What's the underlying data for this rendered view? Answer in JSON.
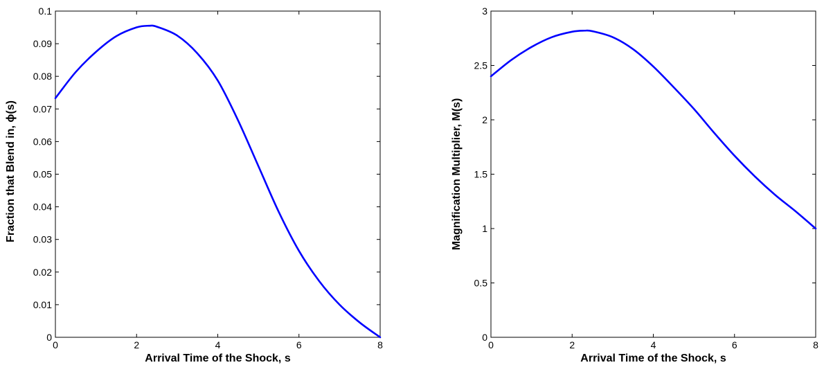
{
  "chart_data": [
    {
      "type": "line",
      "xlabel": "Arrival Time of the Shock, s",
      "ylabel": "Fraction that Blend in,    ϕ(s)",
      "xlim": [
        0,
        8
      ],
      "ylim": [
        0,
        0.1
      ],
      "xticks": [
        0,
        2,
        4,
        6,
        8
      ],
      "yticks": [
        0,
        0.01,
        0.02,
        0.03,
        0.04,
        0.05,
        0.06,
        0.07,
        0.08,
        0.09,
        0.1
      ],
      "xtick_labels": [
        "0",
        "2",
        "4",
        "6",
        "8"
      ],
      "ytick_labels": [
        "0",
        "0.01",
        "0.02",
        "0.03",
        "0.04",
        "0.05",
        "0.06",
        "0.07",
        "0.08",
        "0.09",
        "0.1"
      ],
      "grid": false,
      "series": [
        {
          "color": "#0000ff",
          "x": [
            0,
            0.5,
            1,
            1.5,
            2,
            2.3,
            2.5,
            3,
            3.5,
            4,
            4.5,
            5,
            5.5,
            6,
            6.5,
            7,
            7.5,
            8
          ],
          "y": [
            0.0733,
            0.0813,
            0.0875,
            0.0923,
            0.095,
            0.0955,
            0.0952,
            0.0925,
            0.087,
            0.0787,
            0.0665,
            0.0525,
            0.0385,
            0.0265,
            0.0172,
            0.01,
            0.0045,
            0.0
          ]
        }
      ]
    },
    {
      "type": "line",
      "xlabel": "Arrival Time of the Shock, s",
      "ylabel": "Magnification Multiplier, M(s)",
      "xlim": [
        0,
        8
      ],
      "ylim": [
        0,
        3
      ],
      "xticks": [
        0,
        2,
        4,
        6,
        8
      ],
      "yticks": [
        0,
        0.5,
        1,
        1.5,
        2,
        2.5,
        3
      ],
      "xtick_labels": [
        "0",
        "2",
        "4",
        "6",
        "8"
      ],
      "ytick_labels": [
        "0",
        "0.5",
        "1",
        "1.5",
        "2",
        "2.5",
        "3"
      ],
      "grid": false,
      "series": [
        {
          "color": "#0000ff",
          "x": [
            0,
            0.5,
            1,
            1.5,
            2,
            2.3,
            2.5,
            3,
            3.5,
            4,
            4.5,
            5,
            5.5,
            6,
            6.5,
            7,
            7.5,
            8
          ],
          "y": [
            2.4,
            2.55,
            2.67,
            2.76,
            2.81,
            2.82,
            2.815,
            2.76,
            2.65,
            2.49,
            2.3,
            2.1,
            1.88,
            1.67,
            1.48,
            1.31,
            1.16,
            1.0
          ]
        }
      ]
    }
  ]
}
